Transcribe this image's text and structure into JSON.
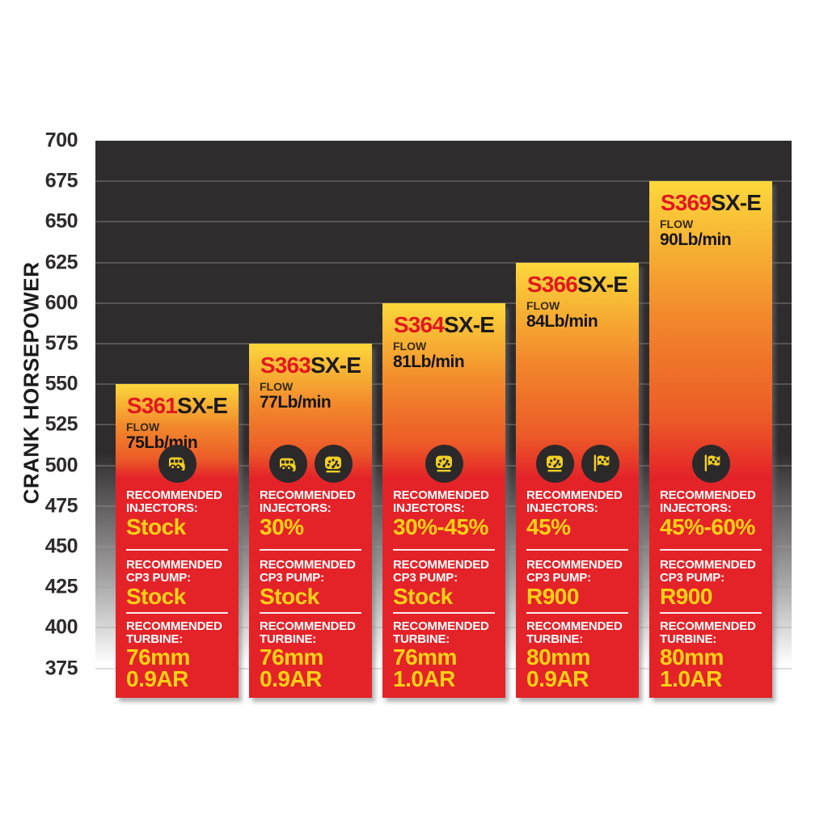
{
  "chart_data": {
    "type": "bar",
    "title": "",
    "xlabel": "",
    "ylabel": "CRANK HORSEPOWER",
    "yticks": [
      700,
      675,
      650,
      625,
      600,
      575,
      550,
      525,
      500,
      475,
      450,
      425,
      400,
      375
    ],
    "ylim": [
      355,
      700
    ],
    "grid": true,
    "legend": "none",
    "section_labels": {
      "injectors": [
        "RECOMMENDED",
        "INJECTORS:"
      ],
      "cp3": [
        "RECOMMENDED",
        "CP3 PUMP:"
      ],
      "turbine": [
        "RECOMMENDED",
        "TURBINE:"
      ]
    },
    "flow_label": "FLOW",
    "series": [
      {
        "model_prefix": "S361",
        "model_suffix": "SX-E",
        "crank_hp": 550,
        "flow": "75Lb/min",
        "icons": [
          "towing-icon"
        ],
        "injectors": "Stock",
        "cp3_pump": "Stock",
        "turbine": [
          "76mm",
          "0.9AR"
        ]
      },
      {
        "model_prefix": "S363",
        "model_suffix": "SX-E",
        "crank_hp": 575,
        "flow": "77Lb/min",
        "icons": [
          "towing-icon",
          "gauge-icon"
        ],
        "injectors": "30%",
        "cp3_pump": "Stock",
        "turbine": [
          "76mm",
          "0.9AR"
        ]
      },
      {
        "model_prefix": "S364",
        "model_suffix": "SX-E",
        "crank_hp": 600,
        "flow": "81Lb/min",
        "icons": [
          "gauge-icon"
        ],
        "injectors": "30%-45%",
        "cp3_pump": "Stock",
        "turbine": [
          "76mm",
          "1.0AR"
        ]
      },
      {
        "model_prefix": "S366",
        "model_suffix": "SX-E",
        "crank_hp": 625,
        "flow": "84Lb/min",
        "icons": [
          "gauge-icon",
          "checkered-flag-icon"
        ],
        "injectors": "45%",
        "cp3_pump": "R900",
        "turbine": [
          "80mm",
          "0.9AR"
        ]
      },
      {
        "model_prefix": "S369",
        "model_suffix": "SX-E",
        "crank_hp": 675,
        "flow": "90Lb/min",
        "icons": [
          "checkered-flag-icon"
        ],
        "injectors": "45%-60%",
        "cp3_pump": "R900",
        "turbine": [
          "80mm",
          "1.0AR"
        ]
      }
    ],
    "colors": {
      "bar_yellow": "#fcd83b",
      "bar_orange": "#f2892c",
      "bar_deep_orange": "#ec5b28",
      "bar_red": "#e42329",
      "model_prefix_red": "#e2181f",
      "model_suffix_black": "#1d1a1b",
      "value_yellow": "#ffd215",
      "plot_background": "#2f2c2d",
      "icon_circle": "#2c292a",
      "icon_glyph": "#f2d024"
    }
  }
}
